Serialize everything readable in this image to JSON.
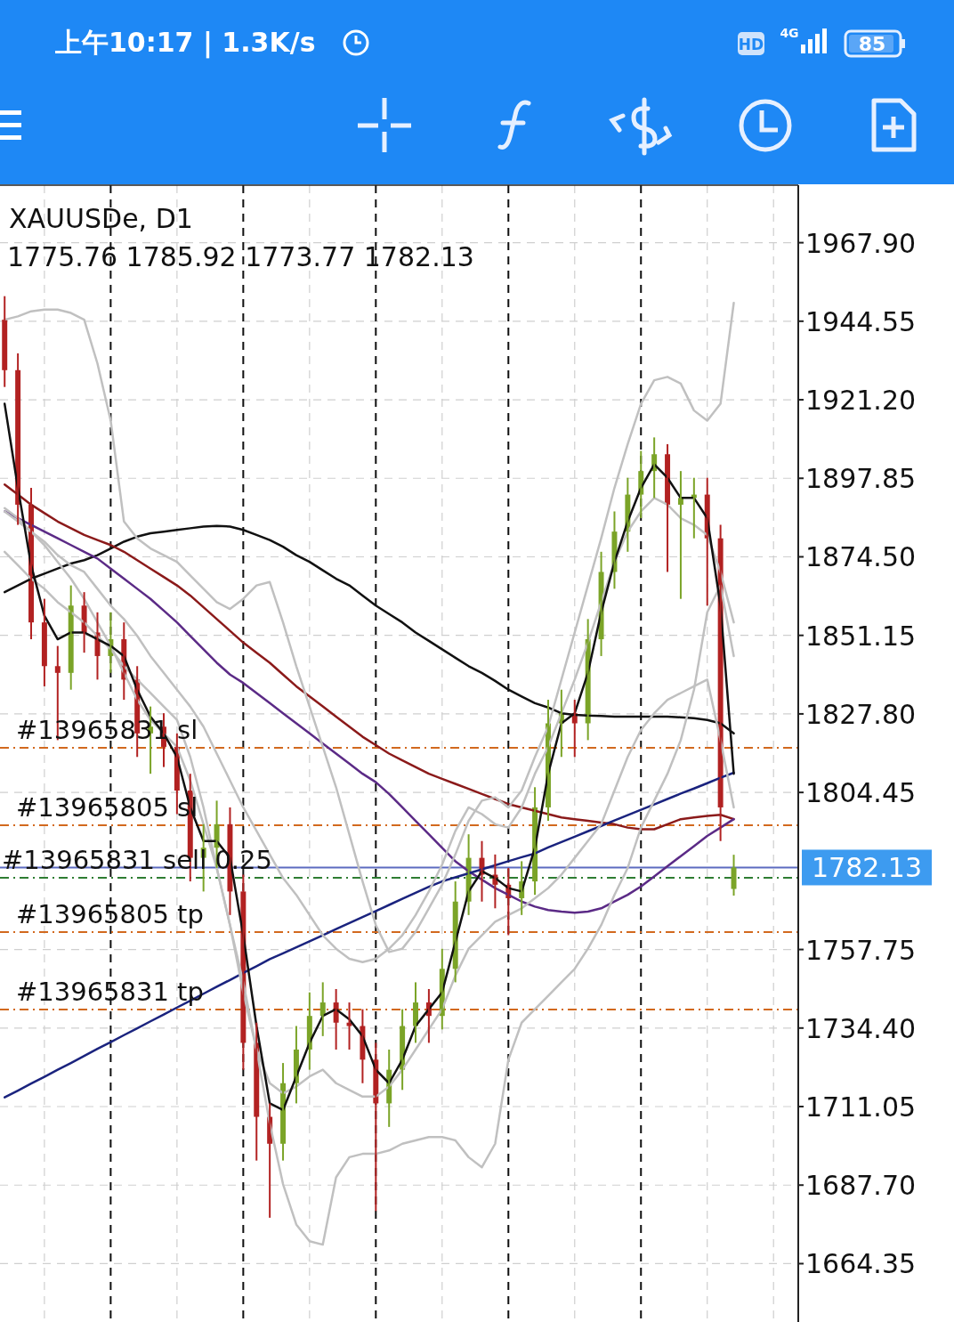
{
  "chart_data": {
    "type": "candlestick",
    "title": "XAUUSDe, D1",
    "subtitle": "1775.76 1785.92 1773.77 1782.13",
    "annotations": [
      "上午10:17 | 1.3K/s",
      "HD",
      "4G",
      "85"
    ],
    "categories": [
      null,
      null,
      null,
      null,
      null,
      null,
      null,
      null,
      null,
      null,
      null,
      null,
      null,
      null,
      null,
      null,
      null,
      null,
      null,
      null,
      null,
      null,
      null,
      null,
      null,
      null,
      null,
      null,
      null,
      null,
      null,
      null,
      null,
      null,
      null,
      null,
      null,
      null,
      null,
      null,
      null,
      null,
      null,
      null,
      null,
      null,
      null,
      null,
      null,
      null,
      null,
      null,
      null,
      null,
      null,
      null
    ],
    "ohlc": [
      [
        1945,
        1952,
        1925,
        1930
      ],
      [
        1930,
        1935,
        1884,
        1890
      ],
      [
        1890,
        1895,
        1850,
        1855
      ],
      [
        1855,
        1862,
        1836,
        1842
      ],
      [
        1842,
        1848,
        1820,
        1840
      ],
      [
        1840,
        1866,
        1835,
        1860
      ],
      [
        1860,
        1864,
        1846,
        1852
      ],
      [
        1852,
        1858,
        1838,
        1845
      ],
      [
        1845,
        1858,
        1840,
        1850
      ],
      [
        1850,
        1855,
        1832,
        1838
      ],
      [
        1838,
        1842,
        1815,
        1822
      ],
      [
        1822,
        1830,
        1810,
        1824
      ],
      [
        1824,
        1828,
        1812,
        1818
      ],
      [
        1818,
        1822,
        1798,
        1805
      ],
      [
        1805,
        1810,
        1778,
        1785
      ],
      [
        1785,
        1795,
        1775,
        1788
      ],
      [
        1788,
        1802,
        1782,
        1795
      ],
      [
        1795,
        1800,
        1768,
        1775
      ],
      [
        1775,
        1780,
        1722,
        1730
      ],
      [
        1730,
        1736,
        1695,
        1708
      ],
      [
        1708,
        1712,
        1678,
        1700
      ],
      [
        1700,
        1724,
        1695,
        1718
      ],
      [
        1718,
        1735,
        1712,
        1728
      ],
      [
        1728,
        1745,
        1722,
        1738
      ],
      [
        1738,
        1748,
        1732,
        1742
      ],
      [
        1742,
        1746,
        1728,
        1736
      ],
      [
        1736,
        1742,
        1728,
        1735
      ],
      [
        1735,
        1740,
        1718,
        1725
      ],
      [
        1725,
        1730,
        1680,
        1712
      ],
      [
        1712,
        1728,
        1705,
        1722
      ],
      [
        1722,
        1740,
        1716,
        1735
      ],
      [
        1735,
        1748,
        1730,
        1742
      ],
      [
        1742,
        1746,
        1730,
        1738
      ],
      [
        1738,
        1758,
        1734,
        1752
      ],
      [
        1752,
        1778,
        1748,
        1772
      ],
      [
        1772,
        1792,
        1768,
        1785
      ],
      [
        1785,
        1790,
        1772,
        1780
      ],
      [
        1780,
        1786,
        1770,
        1777
      ],
      [
        1777,
        1782,
        1762,
        1773
      ],
      [
        1773,
        1784,
        1768,
        1778
      ],
      [
        1778,
        1806,
        1774,
        1800
      ],
      [
        1800,
        1832,
        1796,
        1825
      ],
      [
        1825,
        1835,
        1815,
        1828
      ],
      [
        1828,
        1832,
        1815,
        1825
      ],
      [
        1825,
        1856,
        1820,
        1850
      ],
      [
        1850,
        1876,
        1845,
        1870
      ],
      [
        1870,
        1888,
        1865,
        1882
      ],
      [
        1882,
        1898,
        1876,
        1893
      ],
      [
        1893,
        1906,
        1886,
        1900
      ],
      [
        1900,
        1910,
        1892,
        1905
      ],
      [
        1905,
        1908,
        1870,
        1890
      ],
      [
        1890,
        1900,
        1862,
        1892
      ],
      [
        1892,
        1898,
        1880,
        1893
      ],
      [
        1893,
        1898,
        1860,
        1880
      ],
      [
        1880,
        1884,
        1790,
        1800
      ],
      [
        1775.76,
        1785.92,
        1773.77,
        1782.13
      ]
    ],
    "series": [
      {
        "type": "line",
        "color": "#111111",
        "values": [
          1864,
          1866,
          1868,
          1869.5,
          1871,
          1872.5,
          1873.5,
          1875,
          1877,
          1879,
          1880.5,
          1881.5,
          1882,
          1882.5,
          1883,
          1883.5,
          1883.7,
          1883.5,
          1882.5,
          1881,
          1879.5,
          1877.5,
          1875,
          1873,
          1870.5,
          1868,
          1866,
          1863,
          1860,
          1857.5,
          1855,
          1852,
          1849.5,
          1847,
          1844.5,
          1842,
          1840,
          1837.6,
          1835,
          1833,
          1831,
          1829.7,
          1828,
          1827.5,
          1827.3,
          1827.2,
          1827,
          1827,
          1827,
          1827,
          1827,
          1826.8,
          1826.5,
          1826,
          1825,
          1822
        ]
      },
      {
        "type": "line",
        "color": "#8b1a1a",
        "values": [
          1896,
          1893,
          1890,
          1887.5,
          1885,
          1883,
          1881,
          1879.5,
          1878,
          1876,
          1873.5,
          1871,
          1868.5,
          1866,
          1863,
          1859.5,
          1856,
          1852.5,
          1849,
          1846,
          1843,
          1839.5,
          1836,
          1833,
          1830,
          1827,
          1824,
          1821,
          1818.5,
          1816,
          1814,
          1812,
          1810,
          1808.5,
          1807,
          1805.5,
          1804,
          1802.5,
          1801,
          1800,
          1799,
          1798,
          1797,
          1796.5,
          1796,
          1795.5,
          1795,
          1794,
          1793.5,
          1793.5,
          1795,
          1796.5,
          1797,
          1797.5,
          1797.8,
          1796.5
        ]
      },
      {
        "type": "line",
        "color": "#5b2a86",
        "values": [
          1888,
          1886,
          1884,
          1882,
          1880,
          1878,
          1876,
          1874,
          1871,
          1868,
          1865,
          1862,
          1858.5,
          1855,
          1851,
          1847,
          1843,
          1839.5,
          1837,
          1834,
          1831,
          1828,
          1825,
          1822,
          1819,
          1816,
          1813,
          1810,
          1807.5,
          1804,
          1800,
          1796,
          1792,
          1788,
          1784,
          1781,
          1778.5,
          1776,
          1774,
          1772,
          1770.5,
          1769.5,
          1769,
          1768.7,
          1769,
          1770,
          1772,
          1774,
          1776.5,
          1779.5,
          1782.5,
          1785.5,
          1788.5,
          1791.5,
          1794,
          1796.5
        ]
      },
      {
        "type": "line",
        "color": "#1a237e",
        "values": [
          1713.8,
          1715.8,
          1717.9,
          1719.9,
          1722,
          1724,
          1726.1,
          1728.2,
          1730.2,
          1732.3,
          1734.3,
          1736.4,
          1738.4,
          1740.5,
          1742.5,
          1744.6,
          1746.7,
          1748.7,
          1750.8,
          1752.8,
          1754.9,
          1756.6,
          1758.4,
          1760.2,
          1762,
          1763.8,
          1765.6,
          1767.4,
          1769.2,
          1771,
          1772.8,
          1774.6,
          1776.4,
          1778,
          1779.2,
          1780.4,
          1781.6,
          1782.8,
          1784,
          1785.2,
          1786.3,
          1788.1,
          1789.7,
          1791.3,
          1792.9,
          1794.5,
          1796.1,
          1797.7,
          1799.3,
          1800.9,
          1802.5,
          1804.1,
          1805.6,
          1807.2,
          1808.8,
          1810.3
        ]
      },
      {
        "type": "line",
        "color": "#c0c0c0",
        "values": [
          1945,
          1946,
          1947.5,
          1948,
          1948,
          1947,
          1945,
          1932,
          1915,
          1885,
          1880,
          1877,
          1875,
          1873,
          1869,
          1865,
          1861,
          1859,
          1862,
          1866,
          1867,
          1855,
          1842,
          1830,
          1818,
          1806,
          1792,
          1778,
          1765,
          1757,
          1758,
          1763,
          1770,
          1777,
          1786,
          1796,
          1802,
          1803,
          1800,
          1805,
          1815,
          1824,
          1838,
          1852,
          1866,
          1880,
          1895,
          1908,
          1920,
          1927,
          1928,
          1926,
          1918,
          1915,
          1920,
          1950
        ]
      },
      {
        "type": "line",
        "color": "#c0c0c0",
        "values": [
          1888,
          1885,
          1882,
          1878,
          1873,
          1868,
          1862,
          1855,
          1848,
          1840,
          1832,
          1826,
          1822,
          1818,
          1808,
          1795,
          1782,
          1765,
          1748,
          1728,
          1706,
          1688,
          1676,
          1671,
          1670,
          1690,
          1696,
          1697,
          1697,
          1698,
          1700,
          1701,
          1702,
          1702,
          1701,
          1696,
          1693,
          1700,
          1725,
          1736,
          1740,
          1744,
          1748,
          1752,
          1758,
          1765,
          1774,
          1782,
          1794,
          1802,
          1810,
          1820,
          1835,
          1858,
          1866,
          1845
        ]
      },
      {
        "type": "line",
        "color": "#c0c0c0",
        "values": [
          1889,
          1886,
          1882,
          1879,
          1875,
          1872,
          1870,
          1865,
          1860,
          1856,
          1851,
          1845,
          1840,
          1835,
          1830,
          1824,
          1816,
          1808,
          1800,
          1793,
          1786,
          1779,
          1774,
          1768,
          1762,
          1758,
          1755,
          1754,
          1755,
          1758,
          1762,
          1768,
          1775,
          1783,
          1793,
          1800,
          1798,
          1795,
          1794,
          1800,
          1810,
          1818,
          1828,
          1838,
          1849,
          1861,
          1873,
          1882,
          1888,
          1892,
          1890,
          1886,
          1884,
          1881,
          1870,
          1855
        ]
      },
      {
        "type": "line",
        "color": "#c0c0c0",
        "values": [
          1876,
          1872,
          1868,
          1865,
          1861,
          1858,
          1855,
          1851,
          1847,
          1842,
          1838,
          1834,
          1830,
          1826,
          1815,
          1800,
          1782,
          1765,
          1745,
          1728,
          1718,
          1715,
          1717,
          1720,
          1722,
          1718,
          1716,
          1714,
          1714,
          1717,
          1722,
          1728,
          1734,
          1740,
          1750,
          1758,
          1762,
          1766,
          1768,
          1770,
          1773,
          1776,
          1780,
          1785,
          1790,
          1795,
          1805,
          1815,
          1823,
          1828,
          1832,
          1834,
          1836,
          1838,
          1820,
          1800
        ]
      },
      {
        "type": "line",
        "color": "#111111",
        "values": [
          1920,
          1895,
          1872,
          1857,
          1850,
          1852,
          1852,
          1850,
          1848,
          1845,
          1835,
          1827,
          1822,
          1815,
          1800,
          1790,
          1790,
          1785,
          1762,
          1735,
          1712,
          1710,
          1720,
          1730,
          1738,
          1740,
          1737,
          1732,
          1722,
          1718,
          1725,
          1735,
          1740,
          1745,
          1760,
          1775,
          1781,
          1779,
          1776,
          1775,
          1788,
          1810,
          1825,
          1828,
          1840,
          1858,
          1873,
          1885,
          1895,
          1902,
          1898,
          1892,
          1892,
          1886,
          1860,
          1810
        ]
      }
    ],
    "ylim": [
      1647,
      1985
    ],
    "yticks": [
      {
        "value": 1967.9,
        "label": "1967.90"
      },
      {
        "value": 1944.55,
        "label": "1944.55"
      },
      {
        "value": 1921.2,
        "label": "1921.20"
      },
      {
        "value": 1897.85,
        "label": "1897.85"
      },
      {
        "value": 1874.5,
        "label": "1874.50"
      },
      {
        "value": 1851.15,
        "label": "1851.15"
      },
      {
        "value": 1827.8,
        "label": "1827.80"
      },
      {
        "value": 1804.45,
        "label": "1804.45"
      },
      {
        "value": 1757.75,
        "label": "1757.75"
      },
      {
        "value": 1734.4,
        "label": "1734.40"
      },
      {
        "value": 1711.05,
        "label": "1711.05"
      },
      {
        "value": 1687.7,
        "label": "1687.70"
      },
      {
        "value": 1664.35,
        "label": "1664.35"
      }
    ],
    "ref_lines": [
      {
        "axis": "y",
        "value": 1817.7,
        "label": "#13965831 sl",
        "color": "#d2691e",
        "line_style": "dashed"
      },
      {
        "axis": "y",
        "value": 1794.7,
        "label": "#13965805 sl",
        "color": "#d2691e",
        "line_style": "dashed"
      },
      {
        "axis": "y",
        "value": 1779.1,
        "label": "#13965831 sell 0.25",
        "color": "#2e7d32",
        "line_style": "dashed"
      },
      {
        "axis": "y",
        "value": 1782.13,
        "label": "1782.13",
        "color": "#5c6bc0",
        "line_style": "solid"
      },
      {
        "axis": "y",
        "value": 1762.9,
        "label": "#13965805 tp",
        "color": "#d2691e",
        "line_style": "dashed"
      },
      {
        "axis": "y",
        "value": 1739.9,
        "label": "#13965831 tp",
        "color": "#d2691e",
        "line_style": "dashed"
      }
    ],
    "grid": true
  }
}
